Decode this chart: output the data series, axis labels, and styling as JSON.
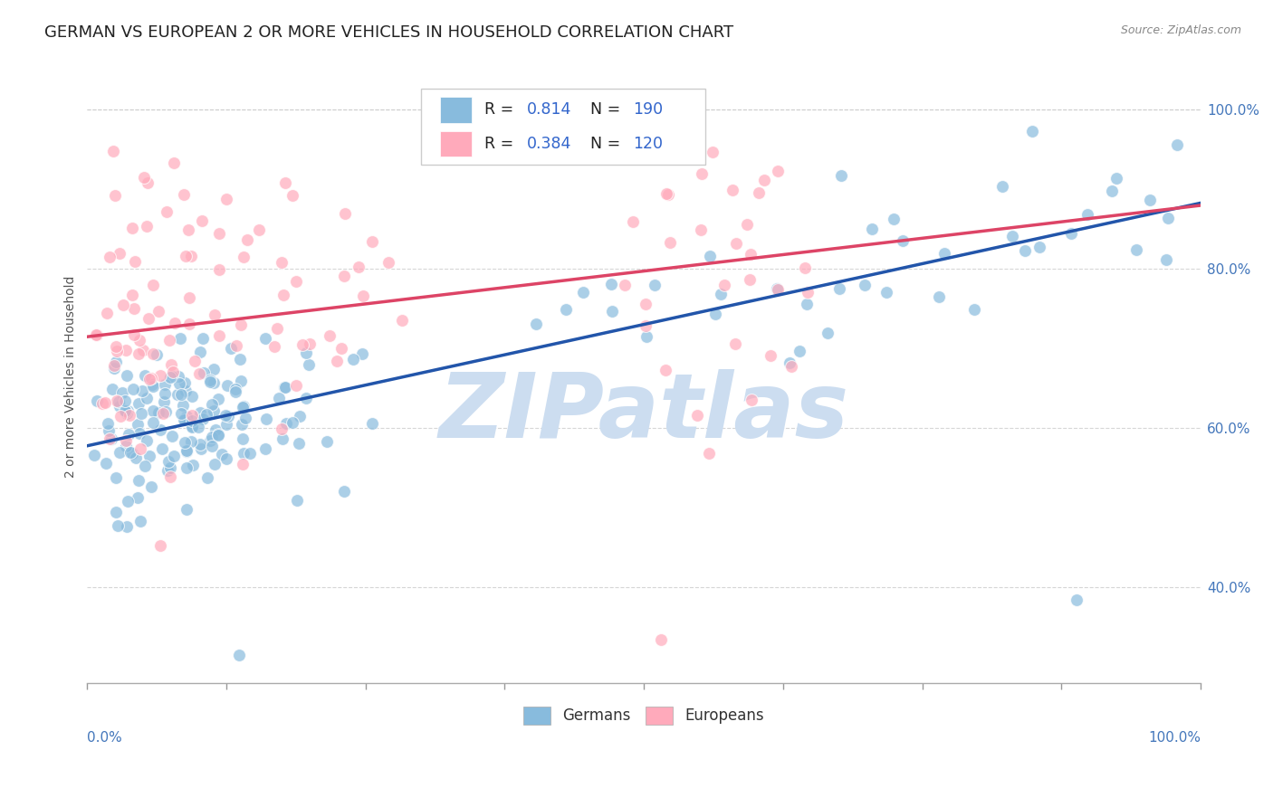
{
  "title": "GERMAN VS EUROPEAN 2 OR MORE VEHICLES IN HOUSEHOLD CORRELATION CHART",
  "source": "Source: ZipAtlas.com",
  "ylabel": "2 or more Vehicles in Household",
  "blue_color": "#88bbdd",
  "pink_color": "#ffaabb",
  "blue_line_color": "#2255aa",
  "pink_line_color": "#dd4466",
  "legend_R_N_color": "#3366cc",
  "watermark_text": "ZIPatlas",
  "watermark_color": "#ccddeeff",
  "bg_color": "#ffffff",
  "grid_color": "#cccccc",
  "title_fontsize": 13,
  "axis_label_fontsize": 10,
  "tick_fontsize": 11,
  "xlim": [
    0.0,
    1.0
  ],
  "ylim": [
    0.28,
    1.05
  ],
  "blue_intercept": 0.578,
  "blue_slope": 0.305,
  "blue_noise": 0.045,
  "pink_intercept": 0.715,
  "pink_slope": 0.165,
  "pink_noise": 0.1,
  "seed_blue": 12,
  "seed_pink": 99
}
